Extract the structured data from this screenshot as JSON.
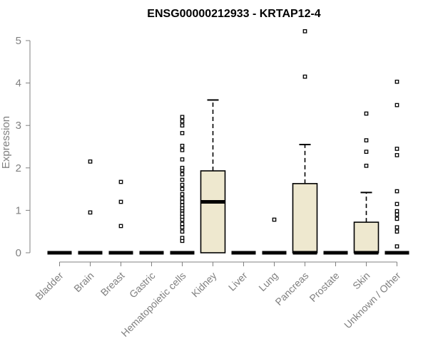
{
  "chart_data": {
    "type": "box",
    "title": "ENSG00000212933 - KRTAP12-4",
    "xlabel": "",
    "ylabel": "Expression",
    "ylim": [
      0,
      5.2
    ],
    "yticks": [
      0,
      1,
      2,
      3,
      4,
      5
    ],
    "ytick_labels": [
      "0",
      "1",
      "2",
      "3",
      "4",
      "5"
    ],
    "box_color": "#eee8cf",
    "axis_color": "#808080",
    "categories": [
      "Bladder",
      "Brain",
      "Breast",
      "Gastric",
      "Hematopoietic cells",
      "Kidney",
      "Liver",
      "Lung",
      "Pancreas",
      "Prostate",
      "Skin",
      "Unknown / Other"
    ],
    "boxes": [
      {
        "name": "Bladder",
        "q1": 0,
        "median": 0,
        "q3": 0,
        "whisker_low": 0,
        "whisker_high": 0,
        "outliers": []
      },
      {
        "name": "Brain",
        "q1": 0,
        "median": 0,
        "q3": 0,
        "whisker_low": 0,
        "whisker_high": 0,
        "outliers": [
          0.95,
          2.15
        ]
      },
      {
        "name": "Breast",
        "q1": 0,
        "median": 0,
        "q3": 0,
        "whisker_low": 0,
        "whisker_high": 0,
        "outliers": [
          0.63,
          1.2,
          1.67
        ]
      },
      {
        "name": "Gastric",
        "q1": 0,
        "median": 0,
        "q3": 0,
        "whisker_low": 0,
        "whisker_high": 0,
        "outliers": []
      },
      {
        "name": "Hematopoietic cells",
        "q1": 0,
        "median": 0,
        "q3": 0,
        "whisker_low": 0,
        "whisker_high": 0,
        "outliers": [
          0.28,
          0.35,
          0.5,
          0.6,
          0.68,
          0.78,
          0.85,
          0.92,
          1.0,
          1.05,
          1.12,
          1.2,
          1.28,
          1.38,
          1.5,
          1.6,
          1.72,
          1.85,
          1.95,
          2.0,
          2.2,
          2.42,
          2.52,
          2.82,
          3.0,
          3.1,
          3.2
        ]
      },
      {
        "name": "Kidney",
        "q1": 0,
        "median": 1.2,
        "q3": 1.93,
        "whisker_low": 0,
        "whisker_high": 3.6,
        "outliers": []
      },
      {
        "name": "Liver",
        "q1": 0,
        "median": 0,
        "q3": 0,
        "whisker_low": 0,
        "whisker_high": 0,
        "outliers": []
      },
      {
        "name": "Lung",
        "q1": 0,
        "median": 0,
        "q3": 0,
        "whisker_low": 0,
        "whisker_high": 0,
        "outliers": [
          0.78
        ]
      },
      {
        "name": "Pancreas",
        "q1": 0,
        "median": 0,
        "q3": 1.63,
        "whisker_low": 0,
        "whisker_high": 2.55,
        "outliers": [
          4.15,
          5.22
        ]
      },
      {
        "name": "Prostate",
        "q1": 0,
        "median": 0,
        "q3": 0,
        "whisker_low": 0,
        "whisker_high": 0,
        "outliers": []
      },
      {
        "name": "Skin",
        "q1": 0,
        "median": 0,
        "q3": 0.72,
        "whisker_low": 0,
        "whisker_high": 1.42,
        "outliers": [
          2.05,
          2.38,
          2.65,
          3.28
        ]
      },
      {
        "name": "Unknown / Other",
        "q1": 0,
        "median": 0,
        "q3": 0,
        "whisker_low": 0,
        "whisker_high": 0,
        "outliers": [
          0.15,
          0.5,
          0.6,
          0.8,
          0.9,
          0.98,
          1.15,
          1.45,
          2.3,
          2.45,
          3.48,
          4.03
        ]
      }
    ]
  }
}
